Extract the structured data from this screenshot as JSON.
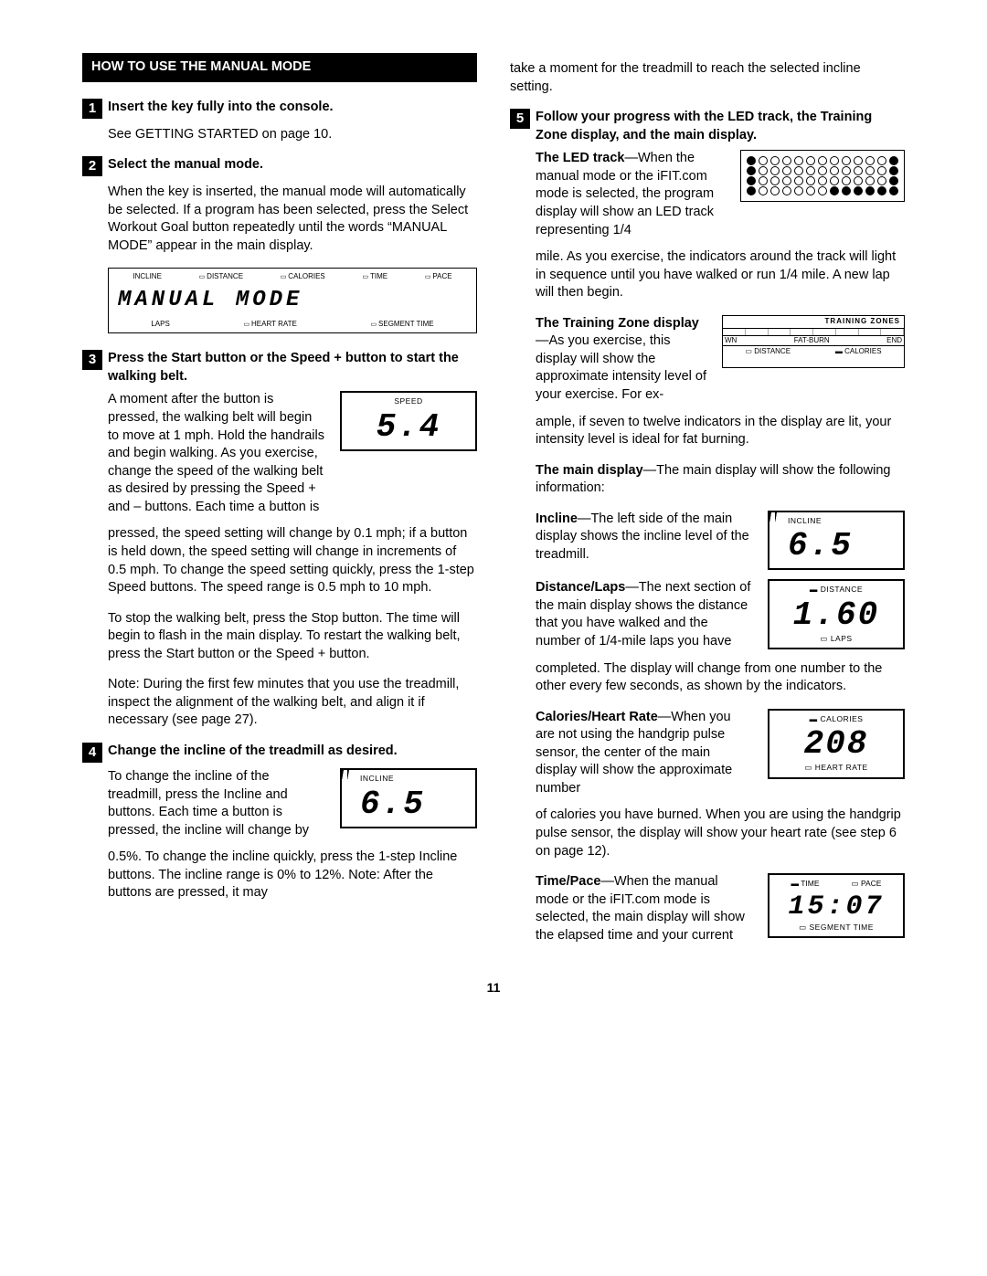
{
  "header": "HOW TO USE THE MANUAL MODE",
  "pageNumber": "11",
  "left": {
    "s1": {
      "num": "1",
      "title": "Insert the key fully into the console.",
      "p1": "See GETTING STARTED on page 10."
    },
    "s2": {
      "num": "2",
      "title": "Select the manual mode.",
      "p1": "When the key is inserted, the manual mode will automatically be selected. If a program has been selected, press the Select Workout Goal button repeatedly until the words “MANUAL MODE” appear in the main display."
    },
    "mainDisplay": {
      "top": [
        "INCLINE",
        "DISTANCE",
        "CALORIES",
        "TIME",
        "PACE"
      ],
      "value": "MANUAL  MODE",
      "bottom": [
        "LAPS",
        "HEART RATE",
        "SEGMENT TIME"
      ]
    },
    "s3": {
      "num": "3",
      "title": "Press the Start button or the Speed + button to start the walking belt.",
      "p1a": "A moment after the button is pressed, the walking belt will begin to move at 1 mph. Hold the handrails and begin walking. As you exercise, change the speed of the walking belt as desired by pressing the Speed + and – buttons. Each time a button is",
      "p1b": "pressed, the speed setting will change by 0.1 mph; if a button is held down, the speed setting will change in increments of 0.5 mph. To change the speed setting quickly, press the 1-step Speed buttons. The speed range is 0.5 mph to 10 mph.",
      "p2": "To stop the walking belt, press the Stop button. The time will begin to flash in the main display. To restart the walking belt, press the Start button or the Speed + button.",
      "p3": "Note: During the first few minutes that you use the treadmill, inspect the alignment of the walking belt, and align it if necessary (see page 27)."
    },
    "speedBox": {
      "label": "SPEED",
      "value": "5.4"
    },
    "s4": {
      "num": "4",
      "title": "Change the incline of the treadmill as desired.",
      "p1a": "To change the incline of the treadmill, press the Incline      and       buttons. Each time a button is pressed, the incline will change by",
      "p1b": "0.5%. To change the incline quickly, press the 1-step Incline buttons. The incline range is 0% to 12%. Note: After the buttons are pressed, it may"
    },
    "inclineBox": {
      "label": "INCLINE",
      "value": "6.5"
    }
  },
  "right": {
    "cont4": "take a moment for the treadmill to reach the selected incline setting.",
    "s5": {
      "num": "5",
      "title": "Follow your progress with the LED track, the Training Zone display, and the main display."
    },
    "ledIntroA": "—When the manual mode or the iFIT.com mode is selected, the program display will show an LED track representing 1/4",
    "ledIntroTitle": "The LED track",
    "ledIntroB": "mile. As you exercise, the indicators around the track will light in sequence until you have walked or run 1/4 mile. A new lap will then begin.",
    "tzTitle": "The Training Zone display",
    "tzA": "—As you exercise, this display will show the approximate intensity level of your exercise. For ex-",
    "tzB": "ample, if seven to twelve indicators in the display are lit, your intensity level is ideal for fat burning.",
    "tzBox": {
      "title": "TRAINING ZONES",
      "l1": "WN",
      "l2": "FAT-BURN",
      "l3": "END",
      "b1": "DISTANCE",
      "b2": "CALORIES"
    },
    "mainTitle": "The main display",
    "mainText": "—The main display will show the following information:",
    "inclineTitle": "Incline",
    "inclineText": "—The left side of the main display shows the incline level of the treadmill.",
    "inclineBox": {
      "label": "INCLINE",
      "value": "6.5"
    },
    "distTitle": "Distance/Laps",
    "distTextA": "—The next section of the main display shows the distance that you have walked and the number of 1/4-mile laps you have",
    "distTextB": "completed. The display will change from one number to the other every few seconds, as shown by the indicators.",
    "distBox": {
      "top": "DISTANCE",
      "value": "1.60",
      "bottom": "LAPS"
    },
    "calTitle": "Calories/Heart Rate",
    "calTextA": "—When you are not using the handgrip pulse sensor, the center of the main display will show the approximate number",
    "calTextB": "of calories you have burned. When you are using the handgrip pulse sensor, the display will show your heart rate (see step 6 on page 12).",
    "calBox": {
      "top": "CALORIES",
      "value": "208",
      "bottom": "HEART RATE"
    },
    "timeTitle": "Time/Pace",
    "timeText": "—When the manual mode or the iFIT.com mode is selected, the main display will show the elapsed time and your current",
    "timeBox": {
      "t1": "TIME",
      "t2": "PACE",
      "value": "15:07",
      "bottom": "SEGMENT TIME"
    }
  }
}
